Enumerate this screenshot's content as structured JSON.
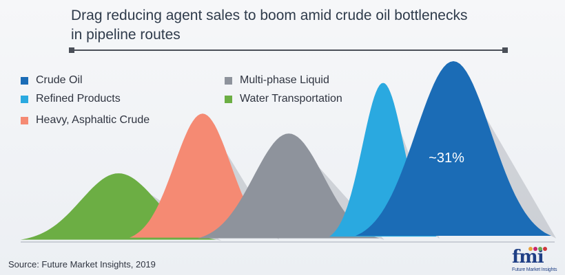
{
  "title_line1": "Drag reducing agent sales to boom amid crude oil bottlenecks",
  "title_line2": "in pipeline routes",
  "source": "Source: Future Market Insights, 2019",
  "logo": {
    "mark": "fmi",
    "tagline": "Future Market Insights"
  },
  "chart_data": {
    "type": "area",
    "title": "Drag reducing agent sales to boom amid crude oil bottlenecks in pipeline routes",
    "shape": "bell-curve",
    "series": [
      {
        "name": "Water Transportation",
        "relative_height": 0.38,
        "color": "#6cae44"
      },
      {
        "name": "Heavy, Asphaltic Crude",
        "relative_height": 0.71,
        "color": "#f58a73"
      },
      {
        "name": "Multi-phase Liquid",
        "relative_height": 0.6,
        "color": "#8e939c"
      },
      {
        "name": "Refined Products",
        "relative_height": 0.88,
        "color": "#2aa9e0"
      },
      {
        "name": "Crude Oil",
        "relative_height": 1.0,
        "color": "#1b6cb6",
        "label": "~31%"
      }
    ],
    "legend": [
      {
        "name": "Crude Oil",
        "color": "#1b6cb6"
      },
      {
        "name": "Refined Products",
        "color": "#2aa9e0"
      },
      {
        "name": "Heavy, Asphaltic Crude",
        "color": "#f58a73"
      },
      {
        "name": "Multi-phase Liquid",
        "color": "#8e939c"
      },
      {
        "name": "Water Transportation",
        "color": "#6cae44"
      }
    ],
    "annotations": [
      {
        "series": "Crude Oil",
        "text": "~31%"
      }
    ]
  }
}
